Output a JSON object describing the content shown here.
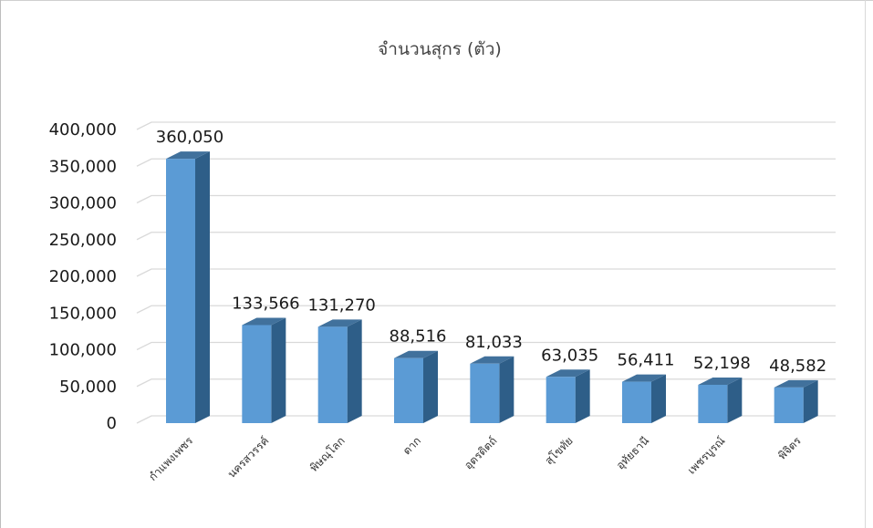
{
  "chart_data": {
    "type": "bar",
    "title": "จำนวนสุกร (ตัว)",
    "categories": [
      "กำแพงเพชร",
      "นครสวรรค์",
      "พิษณุโลก",
      "ตาก",
      "อุตรดิตถ์",
      "สุโขทัย",
      "อุทัยธานี",
      "เพชรบูรณ์",
      "พิจิตร"
    ],
    "values": [
      360050,
      133566,
      131270,
      88516,
      81033,
      63035,
      56411,
      52198,
      48582
    ],
    "data_labels": [
      "360,050",
      "133,566",
      "131,270",
      "88,516",
      "81,033",
      "63,035",
      "56,411",
      "52,198",
      "48,582"
    ],
    "yticks": [
      "0",
      "50,000",
      "100,000",
      "150,000",
      "200,000",
      "250,000",
      "300,000",
      "350,000",
      "400,000"
    ],
    "ylim": [
      0,
      400000
    ],
    "xlabel": "",
    "ylabel": "",
    "grid": true,
    "style": "3d-column",
    "colors": {
      "front": "#5b9bd5",
      "side": "#2e5e88",
      "top": "#41719c",
      "grid": "#d9d9d9"
    }
  }
}
